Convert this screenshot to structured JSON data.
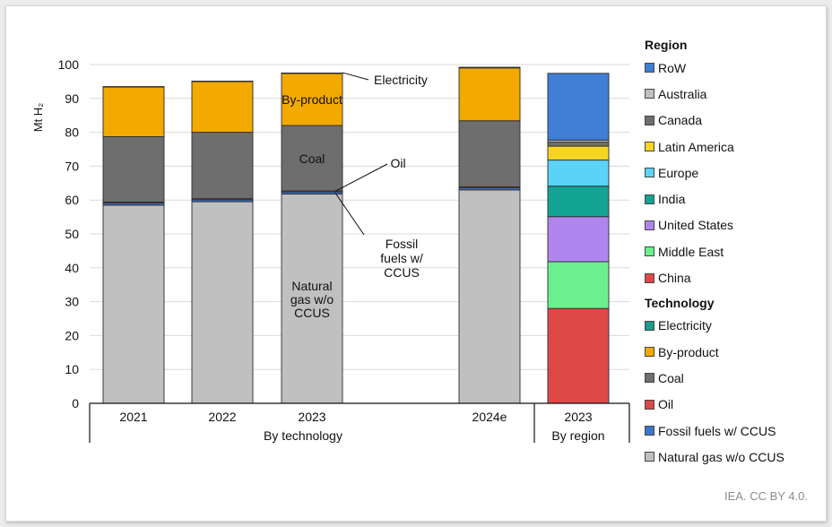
{
  "chart_data": {
    "type": "bar",
    "stacked": true,
    "ylabel": "Mt H₂",
    "ylim": [
      0,
      100
    ],
    "yticks": [
      0,
      10,
      20,
      30,
      40,
      50,
      60,
      70,
      80,
      90,
      100
    ],
    "grid": true,
    "groups": [
      {
        "label": "By technology",
        "categories": [
          "2021",
          "2022",
          "2023",
          "2024e"
        ]
      },
      {
        "label": "By region",
        "categories": [
          "2023"
        ]
      }
    ],
    "technology": {
      "categories": [
        "2021",
        "2022",
        "2023",
        "2024e"
      ],
      "series": [
        {
          "name": "Natural gas w/o CCUS",
          "color": "#c0c0c0",
          "values": [
            58.5,
            59.5,
            61.8,
            63.0
          ]
        },
        {
          "name": "Fossil fuels w/ CCUS",
          "color": "#3b76c8",
          "values": [
            0.6,
            0.6,
            0.6,
            0.6
          ]
        },
        {
          "name": "Oil",
          "color": "#e04848",
          "values": [
            0.3,
            0.3,
            0.3,
            0.3
          ]
        },
        {
          "name": "Coal",
          "color": "#6e6e6e",
          "values": [
            19.3,
            19.6,
            19.3,
            19.5
          ]
        },
        {
          "name": "By-product",
          "color": "#f2a900",
          "values": [
            14.7,
            15.0,
            15.4,
            15.6
          ]
        },
        {
          "name": "Electricity",
          "color": "#1f9a8c",
          "values": [
            0.1,
            0.1,
            0.1,
            0.2
          ]
        }
      ]
    },
    "region": {
      "categories": [
        "2023"
      ],
      "series": [
        {
          "name": "China",
          "color": "#e04848",
          "values": [
            28.0
          ]
        },
        {
          "name": "Middle East",
          "color": "#6bf08d",
          "values": [
            13.8
          ]
        },
        {
          "name": "United States",
          "color": "#b185ee",
          "values": [
            13.3
          ]
        },
        {
          "name": "India",
          "color": "#14a493",
          "values": [
            9.0
          ]
        },
        {
          "name": "Europe",
          "color": "#5ad3f7",
          "values": [
            7.7
          ]
        },
        {
          "name": "Latin America",
          "color": "#f6d522",
          "values": [
            4.1
          ]
        },
        {
          "name": "Canada",
          "color": "#6e6e6e",
          "values": [
            1.2
          ]
        },
        {
          "name": "Australia",
          "color": "#c0c0c0",
          "values": [
            0.6
          ]
        },
        {
          "name": "RoW",
          "color": "#3f7fd6",
          "values": [
            19.7
          ]
        }
      ]
    },
    "annotations": {
      "inside": [
        {
          "text": "By-product",
          "category": "2023"
        },
        {
          "text": "Coal",
          "category": "2023"
        },
        {
          "text": "Natural\ngas w/o\nCCUS",
          "category": "2023"
        }
      ],
      "callouts": [
        "Electricity",
        "Oil",
        "Fossil\nfuels w/\nCCUS"
      ]
    },
    "legend": {
      "placement": "right",
      "region_title": "Region",
      "region_items": [
        "RoW",
        "Australia",
        "Canada",
        "Latin America",
        "Europe",
        "India",
        "United States",
        "Middle East",
        "China"
      ],
      "technology_title": "Technology",
      "technology_items": [
        "Electricity",
        "By-product",
        "Coal",
        "Oil",
        "Fossil fuels w/ CCUS",
        "Natural gas w/o CCUS"
      ]
    }
  },
  "credit": "IEA. CC BY 4.0."
}
